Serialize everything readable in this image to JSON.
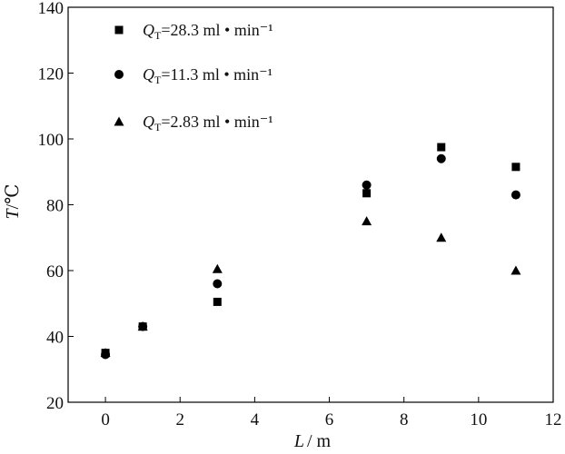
{
  "chart_data": {
    "type": "scatter",
    "title": "",
    "xlabel": {
      "var": "L",
      "unit": "/ m"
    },
    "ylabel": {
      "var": "T",
      "unit": "/℃"
    },
    "xlim": [
      -1,
      12
    ],
    "ylim": [
      20,
      140
    ],
    "x_ticks": [
      0,
      2,
      4,
      6,
      8,
      10,
      12
    ],
    "y_ticks": [
      20,
      40,
      60,
      80,
      100,
      120,
      140
    ],
    "grid": false,
    "legend_position": "top-left",
    "series": [
      {
        "name": "QT=28.3 ml • min⁻¹",
        "legend": {
          "var": "Q",
          "sub": "T",
          "rest": "=28.3 ml • min⁻¹"
        },
        "marker": "square",
        "color": "#000000",
        "points": [
          [
            0,
            35
          ],
          [
            1,
            43
          ],
          [
            3,
            50.5
          ],
          [
            7,
            83.5
          ],
          [
            9,
            97.5
          ],
          [
            11,
            91.5
          ]
        ]
      },
      {
        "name": "QT=11.3 ml • min⁻¹",
        "legend": {
          "var": "Q",
          "sub": "T",
          "rest": "=11.3 ml • min⁻¹"
        },
        "marker": "circle",
        "color": "#000000",
        "points": [
          [
            0,
            34.5
          ],
          [
            1,
            43
          ],
          [
            3,
            56
          ],
          [
            7,
            86
          ],
          [
            9,
            94
          ],
          [
            11,
            83
          ]
        ]
      },
      {
        "name": "QT=2.83 ml • min⁻¹",
        "legend": {
          "var": "Q",
          "sub": "T",
          "rest": "=2.83 ml • min⁻¹"
        },
        "marker": "triangle",
        "color": "#000000",
        "points": [
          [
            0,
            35
          ],
          [
            1,
            43
          ],
          [
            3,
            60.5
          ],
          [
            7,
            75
          ],
          [
            9,
            70
          ],
          [
            11,
            60
          ]
        ]
      }
    ]
  }
}
